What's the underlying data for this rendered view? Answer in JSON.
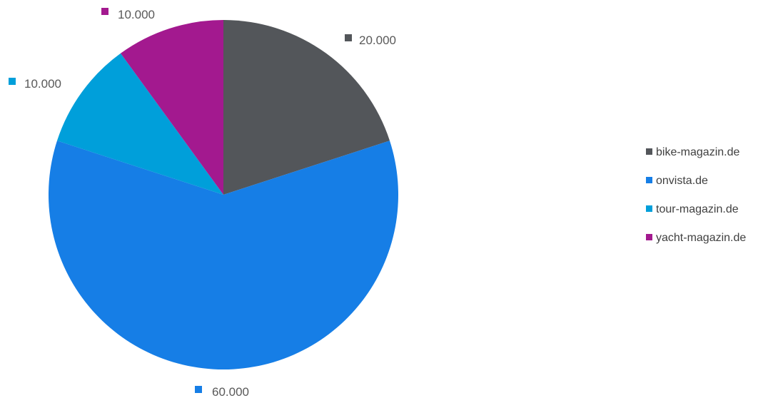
{
  "chart_data": {
    "type": "pie",
    "categories": [
      "bike-magazin.de",
      "onvista.de",
      "tour-magazin.de",
      "yacht-magazin.de"
    ],
    "values": [
      20000,
      60000,
      10000,
      10000
    ],
    "data_labels": [
      "20.000",
      "60.000",
      "10.000",
      "10.000"
    ],
    "colors": [
      "#53565a",
      "#167ee6",
      "#009fda",
      "#a3198f"
    ],
    "legend_position": "right",
    "start_angle": "12 o'clock",
    "direction": "clockwise"
  }
}
